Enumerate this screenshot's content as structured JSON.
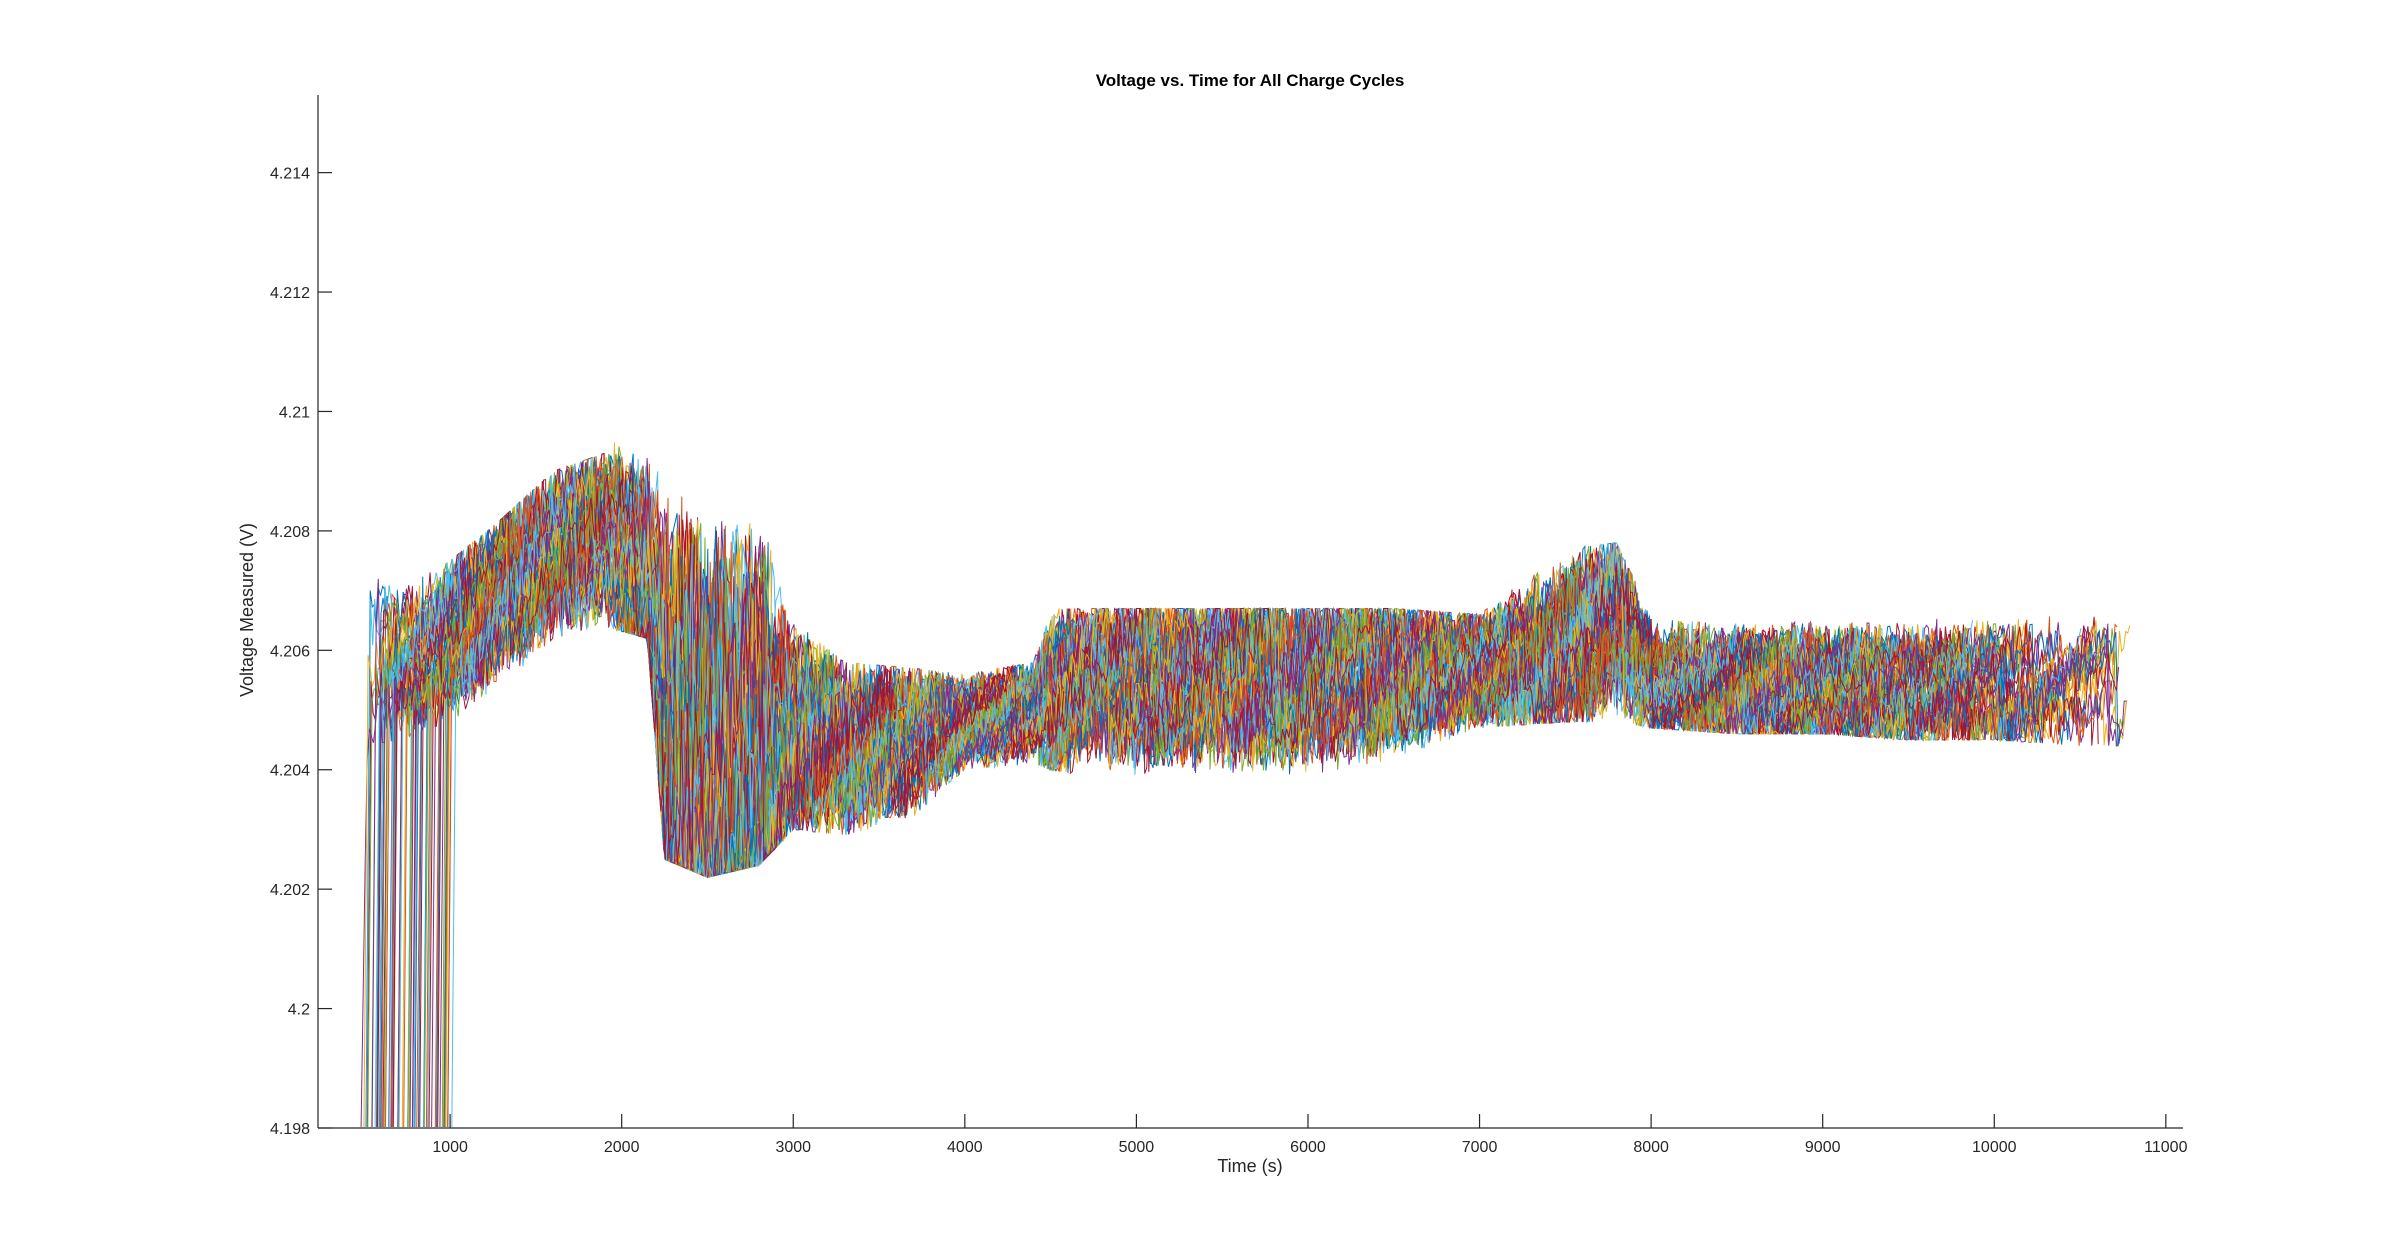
{
  "chart_data": {
    "type": "line",
    "title": "Voltage vs. Time for All Charge Cycles",
    "xlabel": "Time (s)",
    "ylabel": "Voltage Measured (V)",
    "xlim": [
      230,
      11100
    ],
    "ylim": [
      4.198,
      4.2153
    ],
    "x_ticks": [
      1000,
      2000,
      3000,
      4000,
      5000,
      6000,
      7000,
      8000,
      9000,
      10000,
      11000
    ],
    "x_tick_labels": [
      "1000",
      "2000",
      "3000",
      "4000",
      "5000",
      "6000",
      "7000",
      "8000",
      "9000",
      "10000",
      "11000"
    ],
    "y_ticks": [
      4.198,
      4.2,
      4.202,
      4.204,
      4.206,
      4.208,
      4.21,
      4.212,
      4.214
    ],
    "y_tick_labels": [
      "4.198",
      "4.2",
      "4.202",
      "4.204",
      "4.206",
      "4.208",
      "4.21",
      "4.212",
      "4.214"
    ],
    "grid": false,
    "box": "left-bottom axes only",
    "colors": [
      "#0072BD",
      "#D95319",
      "#EDB120",
      "#7E2F8E",
      "#77AC30",
      "#4DBEEE",
      "#A2142F"
    ],
    "series_envelope": {
      "note": "approximate mean envelope of the many overlapping charge-cycle traces",
      "x": [
        470,
        520,
        700,
        1000,
        1300,
        1600,
        1900,
        2150,
        2250,
        2500,
        2800,
        3000,
        3300,
        3700,
        4000,
        4400,
        4500,
        4700,
        5000,
        5500,
        6000,
        6500,
        7000,
        7500,
        7800,
        8000,
        8500,
        9000,
        9500,
        10000,
        10500,
        10800
      ],
      "y_center": [
        4.1985,
        4.2058,
        4.2058,
        4.2062,
        4.207,
        4.2076,
        4.208,
        4.2072,
        4.2048,
        4.204,
        4.2043,
        4.2046,
        4.2044,
        4.2045,
        4.2048,
        4.205,
        4.2052,
        4.2055,
        4.2055,
        4.2055,
        4.2055,
        4.2056,
        4.2057,
        4.206,
        4.2065,
        4.2055,
        4.2054,
        4.2054,
        4.2054,
        4.2054,
        4.2054,
        4.2054
      ],
      "y_min": [
        4.198,
        4.2044,
        4.2045,
        4.2048,
        4.2054,
        4.2062,
        4.2064,
        4.2062,
        4.2025,
        4.2022,
        4.2024,
        4.203,
        4.2029,
        4.2032,
        4.204,
        4.2041,
        4.204,
        4.2039,
        4.2038,
        4.2038,
        4.2038,
        4.204,
        4.2047,
        4.2048,
        4.2048,
        4.2047,
        4.2046,
        4.2046,
        4.2045,
        4.2045,
        4.2044,
        4.2044
      ],
      "y_max": [
        4.2072,
        4.2073,
        4.207,
        4.2075,
        4.2082,
        4.209,
        4.2093,
        4.2101,
        4.2101,
        4.21,
        4.2099,
        4.2065,
        4.2058,
        4.2057,
        4.2056,
        4.2058,
        4.2067,
        4.2067,
        4.2067,
        4.2067,
        4.2067,
        4.2067,
        4.2066,
        4.2077,
        4.2078,
        4.2066,
        4.2066,
        4.2066,
        4.2066,
        4.2066,
        4.2066,
        4.2066
      ]
    },
    "series_count_estimate": 160,
    "start_drop": {
      "note": "traces rise steeply from below the axis at the start of each cycle",
      "start_times": [
        470,
        520,
        560,
        600,
        640,
        680,
        720,
        760,
        800,
        840,
        880,
        920,
        960
      ]
    }
  }
}
